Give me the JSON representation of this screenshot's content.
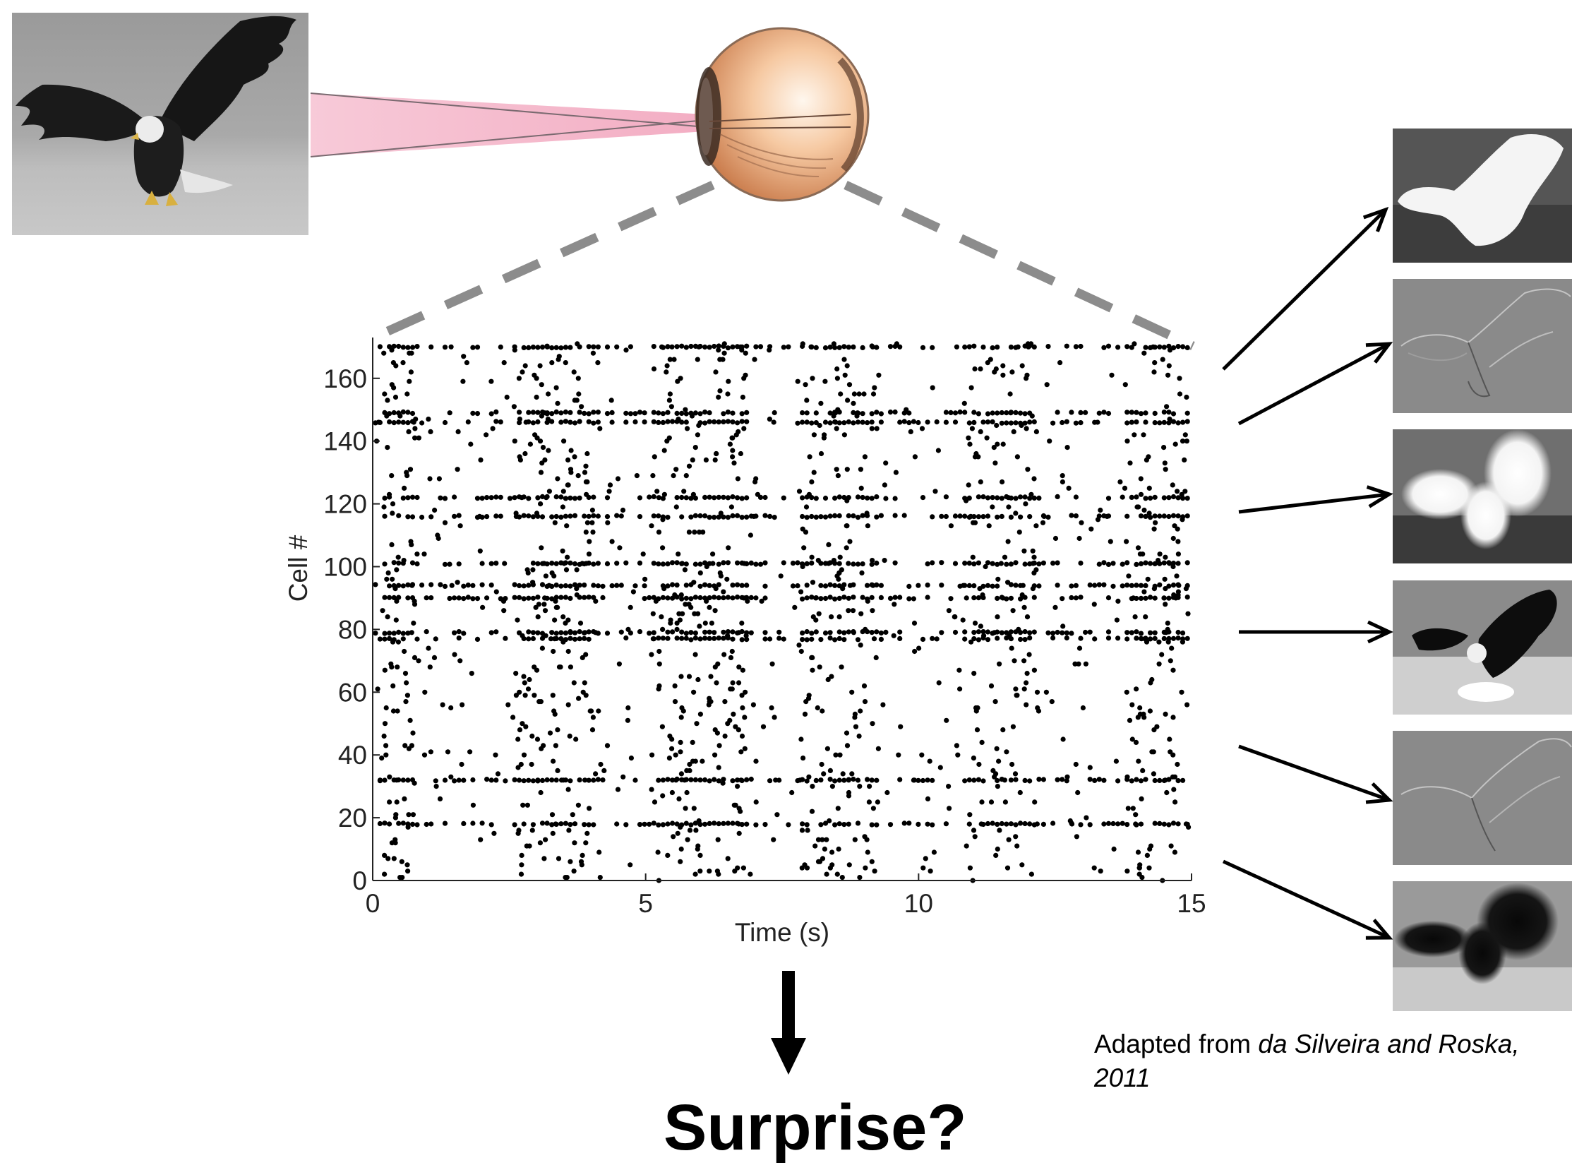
{
  "chart_data": {
    "type": "scatter",
    "subtype": "spike-raster",
    "xlabel": "Time (s)",
    "ylabel": "Cell #",
    "xlim": [
      0,
      15
    ],
    "ylim": [
      0,
      173
    ],
    "x_ticks": [
      0,
      5,
      10,
      15
    ],
    "y_ticks": [
      0,
      20,
      40,
      60,
      80,
      100,
      120,
      140,
      160
    ],
    "grid": false,
    "marker_color": "#000000",
    "dense_rows": [
      170,
      149,
      146,
      122,
      116,
      101,
      94,
      90,
      79,
      77,
      32,
      18
    ],
    "active_windows": [
      [
        0.2,
        0.8
      ],
      [
        2.6,
        4.2
      ],
      [
        5.1,
        6.9
      ],
      [
        7.8,
        9.3
      ],
      [
        10.8,
        12.2
      ],
      [
        13.8,
        15
      ]
    ]
  },
  "diagram": {
    "stimulus_image": "eagle-photo",
    "observer": "eye-icon",
    "ray_color": "#f2b6c8",
    "connector_color": "#8c8c8c",
    "output_panels": [
      {
        "name": "decoded-frame-1",
        "style": "white-silhouette"
      },
      {
        "name": "decoded-frame-2",
        "style": "edge-outline"
      },
      {
        "name": "decoded-frame-3",
        "style": "blurred-white"
      },
      {
        "name": "decoded-frame-4",
        "style": "dark-eagle"
      },
      {
        "name": "decoded-frame-5",
        "style": "edge-outline"
      },
      {
        "name": "decoded-frame-6",
        "style": "blurred-dark"
      }
    ]
  },
  "texts": {
    "question": "Surprise?",
    "credit_prefix": "Adapted from ",
    "credit_authors": "da Silveira and Roska,",
    "credit_year": "2011"
  }
}
